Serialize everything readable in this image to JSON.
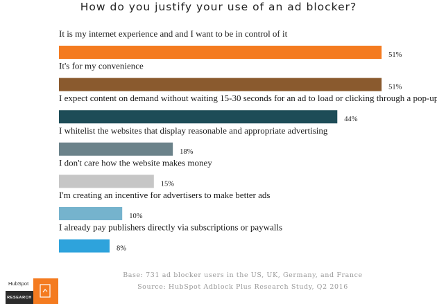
{
  "title": "How do you justify your use of an ad blocker?",
  "chart_data": {
    "type": "bar",
    "orientation": "horizontal",
    "categories": [
      "It is my internet experience and and I want to be in control of it",
      "It's for my convenience",
      "I expect content on demand without waiting 15-30 seconds for an ad to load or clicking through a pop-up",
      "I whitelist the websites that display reasonable and appropriate advertising",
      "I don't care how the website makes money",
      "I'm creating an incentive for advertisers to make better ads",
      "I already pay publishers directly via subscriptions or paywalls"
    ],
    "values": [
      51,
      51,
      44,
      18,
      15,
      10,
      8
    ],
    "value_labels": [
      "51%",
      "51%",
      "44%",
      "18%",
      "15%",
      "10%",
      "8%"
    ],
    "colors": [
      "#f47b20",
      "#8a5a2e",
      "#1d4c57",
      "#6b828a",
      "#c6c6c6",
      "#75b3cd",
      "#2ea3dc"
    ],
    "grid": false
  },
  "footer": {
    "base": "Base: 731 ad blocker users in the US, UK, Germany, and France",
    "source": "Source: HubSpot Adblock Plus Research Study, Q2 2016"
  },
  "logo": {
    "brand": "HubSpot",
    "tag": "RESEARCH",
    "icon": "document-icon",
    "color": "#f47b20"
  }
}
